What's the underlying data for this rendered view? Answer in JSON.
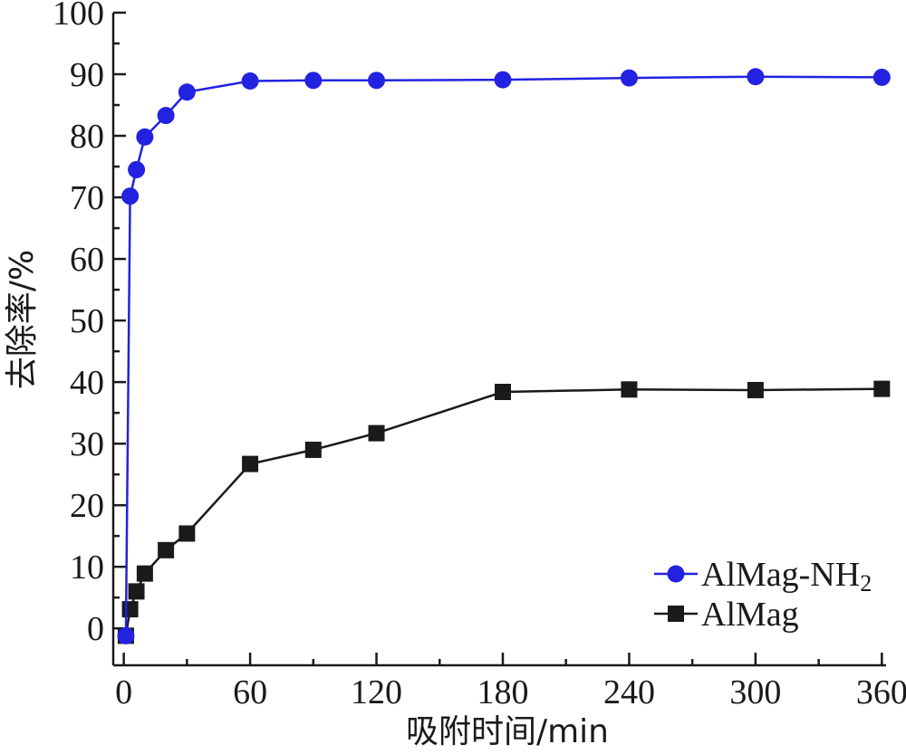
{
  "chart_data": {
    "type": "line",
    "title": "",
    "xlabel": "吸附时间/min",
    "ylabel": "去除率/%",
    "xlim": [
      -5,
      362
    ],
    "ylim": [
      -6,
      100
    ],
    "x_ticks": [
      0,
      60,
      120,
      180,
      240,
      300,
      360
    ],
    "y_ticks": [
      0,
      10,
      20,
      30,
      40,
      50,
      60,
      70,
      80,
      90,
      100
    ],
    "grid": false,
    "legend_position": "bottom-right",
    "series": [
      {
        "name": "AlMag-NH",
        "name_subscript": "2",
        "marker": "circle",
        "color": "#2222e0",
        "x": [
          1,
          3,
          6,
          10,
          20,
          30,
          60,
          90,
          120,
          180,
          240,
          300,
          360
        ],
        "y": [
          -1.2,
          70.2,
          74.5,
          79.8,
          83.3,
          87.1,
          88.9,
          89.0,
          89.0,
          89.1,
          89.4,
          89.6,
          89.5
        ]
      },
      {
        "name": "AlMag",
        "marker": "square",
        "color": "#1a1a1a",
        "x": [
          1,
          3,
          6,
          10,
          20,
          30,
          60,
          90,
          120,
          180,
          240,
          300,
          360
        ],
        "y": [
          -1.2,
          3.1,
          6.0,
          8.9,
          12.7,
          15.4,
          26.7,
          29.0,
          31.7,
          38.4,
          38.8,
          38.7,
          38.9
        ]
      }
    ]
  }
}
